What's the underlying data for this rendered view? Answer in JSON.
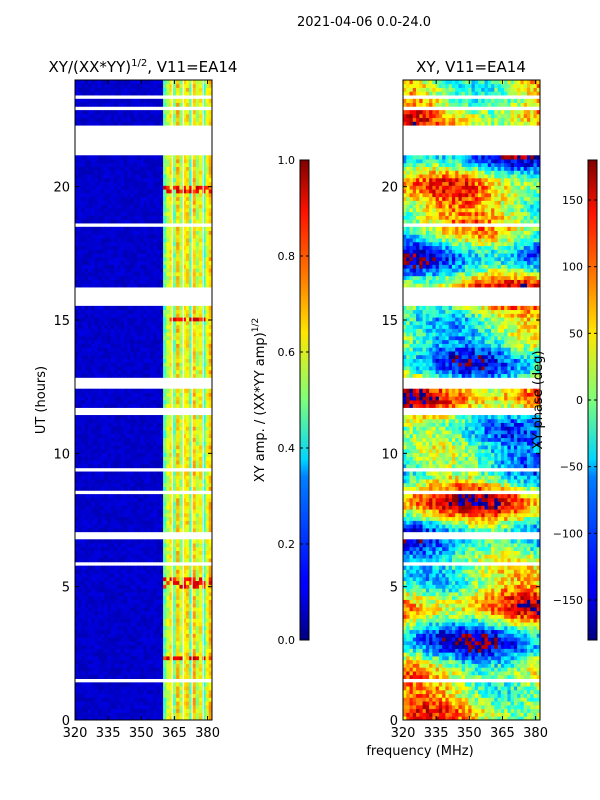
{
  "suptitle": "2021-04-06 0.0-24.0",
  "chart_data": [
    {
      "type": "heatmap",
      "title": "XY/(XX*YY)",
      "title_sup": "1/2",
      "title_suffix": ", V11=EA14",
      "xlabel": "",
      "ylabel": "UT (hours)",
      "xlim": [
        320,
        382
      ],
      "ylim": [
        0,
        24
      ],
      "xticks": [
        320,
        335,
        350,
        365,
        380
      ],
      "yticks": [
        0,
        5,
        10,
        15,
        20
      ],
      "colorbar": {
        "label": "XY amp. / (XX*YY amp)",
        "label_sup": "1/2",
        "range": [
          0.0,
          1.0
        ],
        "ticks": [
          "0.0",
          "0.2",
          "0.4",
          "0.6",
          "0.8",
          "1.0"
        ]
      },
      "description_values": {
        "background_level": 0.05,
        "band_start_mhz": 360,
        "band_level_range": [
          0.3,
          0.7
        ],
        "hot_spot_level": 0.95
      }
    },
    {
      "type": "heatmap",
      "title": "XY, V11=EA14",
      "xlabel": "frequency (MHz)",
      "ylabel": "",
      "xlim": [
        320,
        382
      ],
      "ylim": [
        0,
        24
      ],
      "xticks": [
        320,
        335,
        350,
        365,
        380
      ],
      "yticks": [
        0,
        5,
        10,
        15,
        20
      ],
      "colorbar": {
        "label": "XY phase (deg)",
        "range": [
          -180,
          180
        ],
        "ticks": [
          "150",
          "100",
          "50",
          "0",
          "−50",
          "−100",
          "−150"
        ]
      }
    }
  ]
}
